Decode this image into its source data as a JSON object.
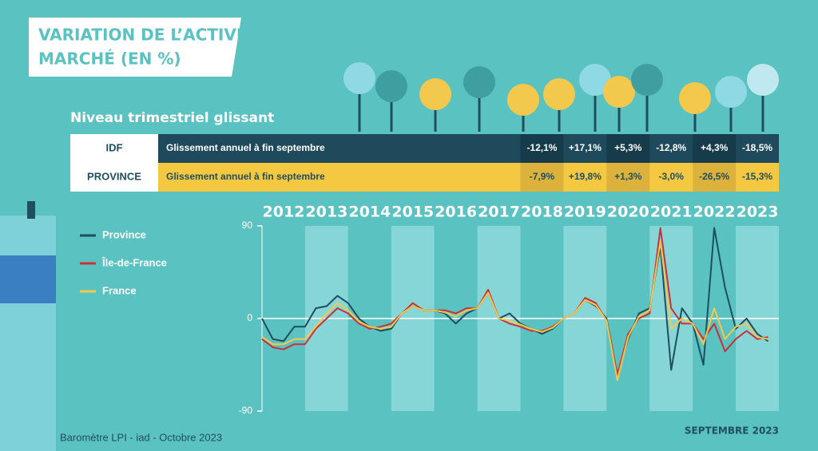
{
  "title": "VARIATION DE L’ACTIVITÉ DU MARCHÉ (EN %)",
  "subtitle": "Niveau trimestriel glissant",
  "table": {
    "rows": [
      {
        "label": "IDF",
        "description": "Glissement annuel à fin septembre",
        "values": [
          "-12,1%",
          "+17,1%",
          "+5,3%",
          "-12,8%",
          "+4,3%",
          "-18,5%"
        ]
      },
      {
        "label": "PROVINCE",
        "description": "Glissement annuel à fin septembre",
        "values": [
          "-7,9%",
          "+19,8%",
          "+1,3%",
          "-3,0%",
          "-26,5%",
          "-15,3%"
        ]
      }
    ]
  },
  "chart_data": {
    "type": "line",
    "categories": [
      "2012",
      "2013",
      "2014",
      "2015",
      "2016",
      "2017",
      "2018",
      "2019",
      "2020",
      "2021",
      "2022",
      "2023"
    ],
    "xlim": [
      2012,
      2024
    ],
    "x": [
      2012,
      2012.25,
      2012.5,
      2012.75,
      2013,
      2013.25,
      2013.5,
      2013.75,
      2014,
      2014.25,
      2014.5,
      2014.75,
      2015,
      2015.25,
      2015.5,
      2015.75,
      2016,
      2016.25,
      2016.5,
      2016.75,
      2017,
      2017.25,
      2017.5,
      2017.75,
      2018,
      2018.25,
      2018.5,
      2018.75,
      2019,
      2019.25,
      2019.5,
      2019.75,
      2020,
      2020.25,
      2020.5,
      2020.75,
      2021,
      2021.25,
      2021.5,
      2021.75,
      2022,
      2022.25,
      2022.5,
      2022.75,
      2023,
      2023.25,
      2023.5,
      2023.75
    ],
    "ylim": [
      -90,
      90
    ],
    "yticks": [
      -90,
      0,
      90
    ],
    "legend": "left",
    "series": [
      {
        "name": "Province",
        "color": "#1f4e5f",
        "values": [
          0,
          -20,
          -22,
          -8,
          -8,
          10,
          12,
          22,
          15,
          0,
          -8,
          -12,
          -10,
          5,
          12,
          8,
          8,
          5,
          -5,
          5,
          10,
          25,
          0,
          5,
          -5,
          -10,
          -15,
          -10,
          0,
          5,
          18,
          12,
          0,
          -55,
          -20,
          5,
          10,
          70,
          -50,
          10,
          -5,
          -45,
          88,
          30,
          -10,
          0,
          -15,
          -22
        ]
      },
      {
        "name": "Île-de-France",
        "color": "#c8313a",
        "values": [
          -20,
          -28,
          -30,
          -25,
          -25,
          -10,
          0,
          10,
          5,
          -5,
          -10,
          -8,
          -5,
          5,
          15,
          8,
          8,
          8,
          5,
          10,
          10,
          28,
          0,
          -5,
          -8,
          -12,
          -12,
          -8,
          0,
          5,
          20,
          15,
          -2,
          -55,
          -15,
          0,
          5,
          88,
          10,
          -5,
          -5,
          -20,
          -5,
          -32,
          -20,
          -12,
          -20,
          -18
        ]
      },
      {
        "name": "France",
        "color": "#f2c94c",
        "values": [
          -18,
          -25,
          -25,
          -20,
          -20,
          -8,
          5,
          15,
          8,
          -3,
          -8,
          -10,
          -8,
          5,
          12,
          8,
          8,
          6,
          2,
          8,
          10,
          25,
          0,
          -2,
          -6,
          -10,
          -13,
          -9,
          0,
          5,
          18,
          13,
          -2,
          -60,
          -18,
          2,
          8,
          75,
          -10,
          0,
          -5,
          -25,
          10,
          -20,
          -8,
          -5,
          -18,
          -20
        ]
      }
    ]
  },
  "footer": {
    "source": "Baromètre LPI - iad - Octobre 2023",
    "date": "SEPTEMBRE 2023"
  }
}
